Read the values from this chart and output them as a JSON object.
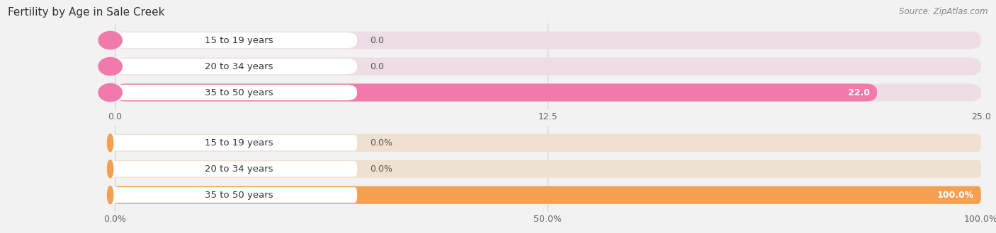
{
  "title": "Fertility by Age in Sale Creek",
  "source": "Source: ZipAtlas.com",
  "top_chart": {
    "categories": [
      "15 to 19 years",
      "20 to 34 years",
      "35 to 50 years"
    ],
    "values": [
      0.0,
      0.0,
      22.0
    ],
    "bar_color": "#f07aaa",
    "bar_bg_color": "#eddde5",
    "value_color_inside": "#ffffff",
    "value_color_outside": "#555555",
    "xlim": [
      0,
      25.0
    ],
    "xticks": [
      0.0,
      12.5,
      25.0
    ],
    "xticklabels": [
      "0.0",
      "12.5",
      "25.0"
    ],
    "value_labels": [
      "0.0",
      "0.0",
      "22.0"
    ]
  },
  "bottom_chart": {
    "categories": [
      "15 to 19 years",
      "20 to 34 years",
      "35 to 50 years"
    ],
    "values": [
      0.0,
      0.0,
      100.0
    ],
    "bar_color": "#f5a050",
    "bar_bg_color": "#f0e0d0",
    "value_color_inside": "#ffffff",
    "value_color_outside": "#555555",
    "xlim": [
      0,
      100.0
    ],
    "xticks": [
      0.0,
      50.0,
      100.0
    ],
    "xticklabels": [
      "0.0%",
      "50.0%",
      "100.0%"
    ],
    "value_labels": [
      "0.0%",
      "0.0%",
      "100.0%"
    ]
  },
  "bg_color": "#f2f2f2",
  "bar_height": 0.68,
  "label_fontsize": 9.5,
  "tick_fontsize": 9,
  "title_fontsize": 11,
  "source_fontsize": 8.5,
  "white_label_bg": "#ffffff",
  "label_text_color": "#333333"
}
